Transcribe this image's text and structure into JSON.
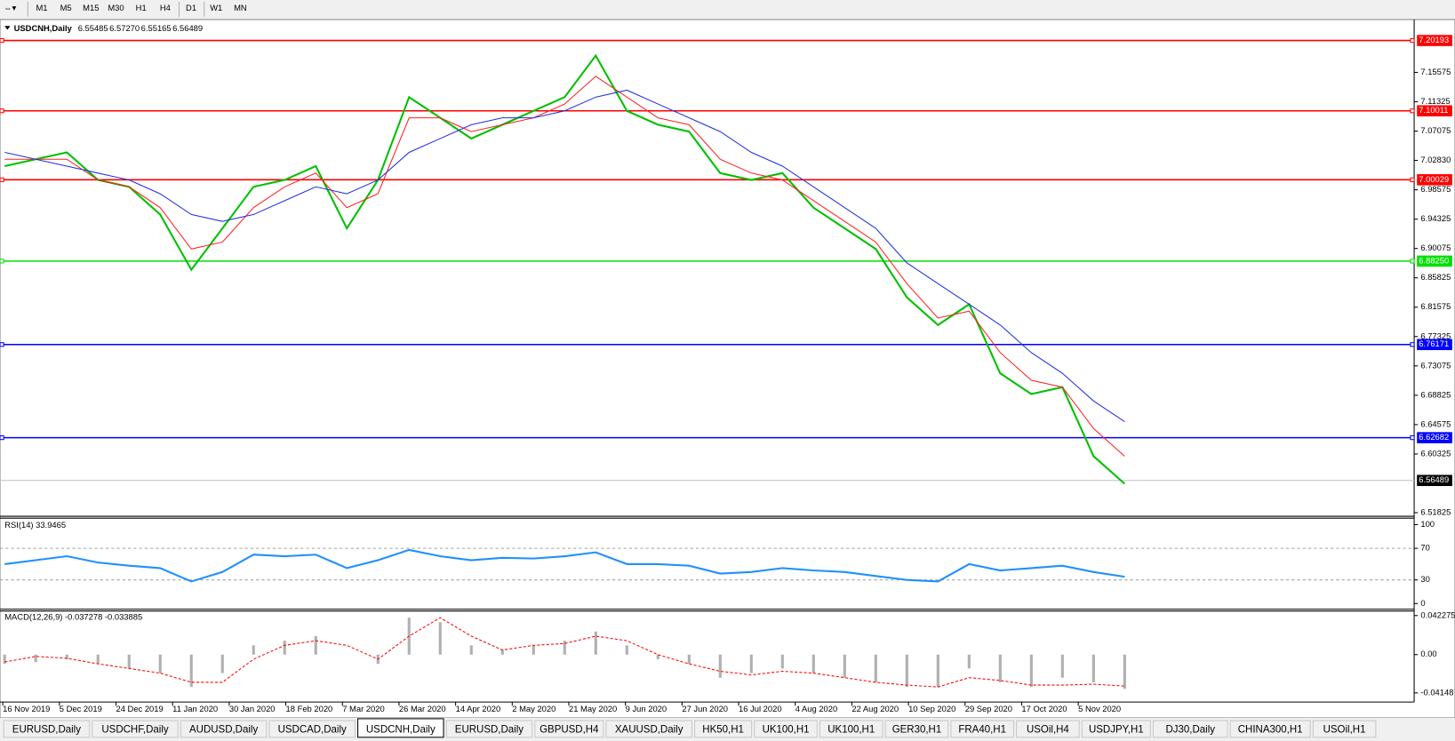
{
  "toolbar": {
    "timeframes": [
      "M1",
      "M5",
      "M15",
      "M30",
      "H1",
      "H4",
      "D1",
      "W1",
      "MN"
    ]
  },
  "chart_data": [
    {
      "type": "line",
      "title": "USDCNH,Daily",
      "ohlc": [
        "6.55485",
        "6.57270",
        "6.55165",
        "6.56489"
      ],
      "ylim": [
        6.513,
        7.231
      ],
      "yticks": [
        7.15575,
        7.11325,
        7.07075,
        {
          "value": 7.0283,
          "label": "7.02830"
        },
        6.98575,
        6.94325,
        6.90075,
        6.85825,
        6.81575,
        6.77325,
        6.73075,
        6.68825,
        6.64575,
        6.60325,
        6.51825
      ],
      "levels": [
        {
          "value": 7.20193,
          "color": "#ff0000"
        },
        {
          "value": 7.10011,
          "color": "#ff0000"
        },
        {
          "value": 7.00029,
          "color": "#ff0000"
        },
        {
          "value": 6.8825,
          "label": "6.88250",
          "color": "#00e000"
        },
        {
          "value": 6.76171,
          "color": "#0000ff"
        },
        {
          "value": 6.62682,
          "color": "#0000ff"
        },
        {
          "value": 6.56489,
          "color": "#c0c0c0",
          "label_fill": "#000000"
        }
      ],
      "series": [
        {
          "color": "#00c000",
          "values": [
            7.02,
            7.03,
            7.04,
            7.0,
            6.99,
            6.95,
            6.87,
            6.93,
            6.99,
            7.0,
            7.02,
            6.93,
            7.0,
            7.12,
            7.09,
            7.06,
            7.08,
            7.1,
            7.12,
            7.18,
            7.1,
            7.08,
            7.07,
            7.01,
            7.0,
            7.01,
            6.96,
            6.93,
            6.9,
            6.83,
            6.79,
            6.82,
            6.72,
            6.69,
            6.7,
            6.6,
            6.56
          ]
        },
        {
          "color": "#ff2020",
          "values": [
            7.03,
            7.03,
            7.03,
            7.0,
            6.99,
            6.96,
            6.9,
            6.91,
            6.96,
            6.99,
            7.01,
            6.96,
            6.98,
            7.09,
            7.09,
            7.07,
            7.08,
            7.09,
            7.11,
            7.15,
            7.12,
            7.09,
            7.08,
            7.03,
            7.01,
            7.0,
            6.97,
            6.94,
            6.91,
            6.85,
            6.8,
            6.81,
            6.75,
            6.71,
            6.7,
            6.64,
            6.6
          ]
        },
        {
          "color": "#2030e0",
          "values": [
            7.04,
            7.03,
            7.02,
            7.01,
            7.0,
            6.98,
            6.95,
            6.94,
            6.95,
            6.97,
            6.99,
            6.98,
            7.0,
            7.04,
            7.06,
            7.08,
            7.09,
            7.09,
            7.1,
            7.12,
            7.13,
            7.11,
            7.09,
            7.07,
            7.04,
            7.02,
            6.99,
            6.96,
            6.93,
            6.88,
            6.85,
            6.82,
            6.79,
            6.75,
            6.72,
            6.68,
            6.65
          ]
        }
      ]
    },
    {
      "type": "line",
      "title": "RSI(14) 33.9465",
      "ylim": [
        0,
        100
      ],
      "yticks": [
        100,
        70,
        30,
        0
      ],
      "levels": [
        70,
        30
      ],
      "series": [
        {
          "color": "#1e90ff",
          "values": [
            50,
            55,
            60,
            52,
            48,
            45,
            28,
            40,
            62,
            60,
            62,
            45,
            55,
            68,
            60,
            55,
            58,
            57,
            60,
            65,
            50,
            50,
            48,
            38,
            40,
            45,
            42,
            40,
            35,
            30,
            28,
            50,
            42,
            45,
            48,
            40,
            34
          ]
        }
      ]
    },
    {
      "type": "macd",
      "title": "MACD(12,26,9) -0.037278 -0.033885",
      "ylim": [
        -0.0493,
        0.0472
      ],
      "yticks": [
        0.042275,
        {
          "value": 0,
          "label": "0.00"
        },
        -0.04148
      ],
      "histogram": {
        "color": "#b0b0b0",
        "values": [
          -0.01,
          -0.008,
          -0.005,
          -0.01,
          -0.015,
          -0.02,
          -0.035,
          -0.02,
          0.01,
          0.015,
          0.02,
          0.0,
          -0.01,
          0.04,
          0.035,
          0.01,
          0.005,
          0.01,
          0.015,
          0.025,
          0.01,
          -0.005,
          -0.01,
          -0.025,
          -0.02,
          -0.015,
          -0.02,
          -0.025,
          -0.03,
          -0.035,
          -0.035,
          -0.015,
          -0.03,
          -0.035,
          -0.025,
          -0.03,
          -0.037
        ]
      },
      "signal": {
        "color": "#ff0000",
        "values": [
          -0.008,
          -0.002,
          -0.004,
          -0.01,
          -0.015,
          -0.02,
          -0.03,
          -0.03,
          -0.005,
          0.01,
          0.015,
          0.01,
          -0.005,
          0.02,
          0.04,
          0.02,
          0.005,
          0.01,
          0.012,
          0.02,
          0.015,
          0.0,
          -0.01,
          -0.018,
          -0.022,
          -0.018,
          -0.02,
          -0.025,
          -0.03,
          -0.033,
          -0.035,
          -0.025,
          -0.028,
          -0.033,
          -0.033,
          -0.032,
          -0.034
        ]
      }
    }
  ],
  "time_axis": {
    "labels": [
      "16 Nov 2019",
      "5 Dec 2019",
      "24 Dec 2019",
      "11 Jan 2020",
      "30 Jan 2020",
      "18 Feb 2020",
      "7 Mar 2020",
      "26 Mar 2020",
      "14 Apr 2020",
      "2 May 2020",
      "21 May 2020",
      "9 Jun 2020",
      "27 Jun 2020",
      "16 Jul 2020",
      "4 Aug 2020",
      "22 Aug 2020",
      "10 Sep 2020",
      "29 Sep 2020",
      "17 Oct 2020",
      "5 Nov 2020"
    ]
  },
  "tabs": {
    "items": [
      "EURUSD,Daily",
      "USDCHF,Daily",
      "AUDUSD,Daily",
      "USDCAD,Daily",
      "USDCNH,Daily",
      "EURUSD,Daily",
      "GBPUSD,H4",
      "XAUUSD,Daily",
      "HK50,H1",
      "UK100,H1",
      "UK100,H1",
      "GER30,H1",
      "FRA40,H1",
      "USOil,H4",
      "USDJPY,H1",
      "DJ30,Daily",
      "CHINA300,H1",
      "USOil,H1"
    ],
    "active": 4
  }
}
